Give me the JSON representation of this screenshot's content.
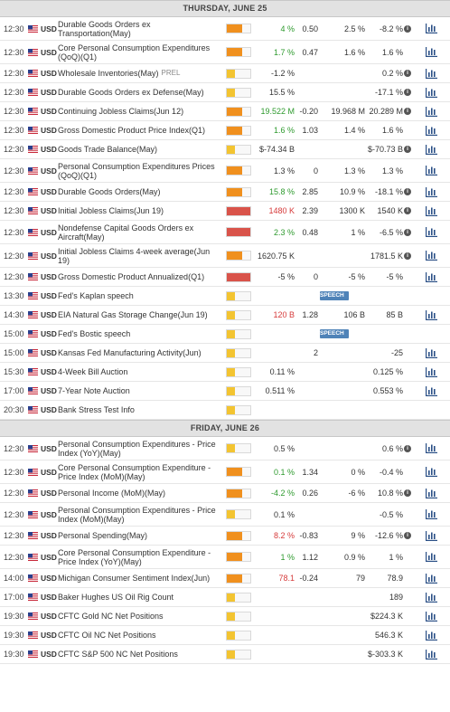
{
  "colors": {
    "orange": "#f0901e",
    "red": "#d9534a",
    "yellow": "#f3c431",
    "green": "#2e9a2e",
    "down": "#d63a3a",
    "speech": "#4f83b8"
  },
  "icons": {
    "flag": "us-flag-icon",
    "info": "info-icon",
    "chart": "bar-chart-icon"
  },
  "days": [
    {
      "header": "THURSDAY, JUNE 25",
      "events": [
        {
          "time": "12:30",
          "currency": "USD",
          "name": "Durable Goods Orders ex Transportation(May)",
          "tag": "",
          "vol": "orange",
          "actual": "4 %",
          "actual_color": "g",
          "deviation": "0.50",
          "consensus": "2.5 %",
          "previous": "-8.2 %",
          "info": true,
          "chart": true,
          "h": 26
        },
        {
          "time": "12:30",
          "currency": "USD",
          "name": "Core Personal Consumption Expenditures (QoQ)(Q1)",
          "tag": "",
          "vol": "orange",
          "actual": "1.7 %",
          "actual_color": "g",
          "deviation": "0.47",
          "consensus": "1.6 %",
          "previous": "1.6 %",
          "info": false,
          "chart": true,
          "h": 26
        },
        {
          "time": "12:30",
          "currency": "USD",
          "name": "Wholesale Inventories(May)",
          "tag": "PREL",
          "vol": "yellow",
          "actual": "-1.2 %",
          "actual_color": "k",
          "deviation": "",
          "consensus": "",
          "previous": "0.2 %",
          "info": true,
          "chart": true,
          "h": 21
        },
        {
          "time": "12:30",
          "currency": "USD",
          "name": "Durable Goods Orders ex Defense(May)",
          "tag": "",
          "vol": "yellow",
          "actual": "15.5 %",
          "actual_color": "k",
          "deviation": "",
          "consensus": "",
          "previous": "-17.1 %",
          "info": true,
          "chart": true,
          "h": 21
        },
        {
          "time": "12:30",
          "currency": "USD",
          "name": "Continuing Jobless Claims(Jun 12)",
          "tag": "",
          "vol": "orange",
          "actual": "19.522 M",
          "actual_color": "g",
          "deviation": "-0.20",
          "consensus": "19.968 M",
          "previous": "20.289 M",
          "info": true,
          "chart": true,
          "h": 21
        },
        {
          "time": "12:30",
          "currency": "USD",
          "name": "Gross Domestic Product Price Index(Q1)",
          "tag": "",
          "vol": "orange",
          "actual": "1.6 %",
          "actual_color": "g",
          "deviation": "1.03",
          "consensus": "1.4 %",
          "previous": "1.6 %",
          "info": false,
          "chart": true,
          "h": 21
        },
        {
          "time": "12:30",
          "currency": "USD",
          "name": "Goods Trade Balance(May)",
          "tag": "",
          "vol": "yellow",
          "actual": "$-74.34 B",
          "actual_color": "k",
          "deviation": "",
          "consensus": "",
          "previous": "$-70.73 B",
          "info": true,
          "chart": true,
          "h": 21
        },
        {
          "time": "12:30",
          "currency": "USD",
          "name": "Personal Consumption Expenditures Prices (QoQ)(Q1)",
          "tag": "",
          "vol": "orange",
          "actual": "1.3 %",
          "actual_color": "k",
          "deviation": "0",
          "consensus": "1.3 %",
          "previous": "1.3 %",
          "info": false,
          "chart": true,
          "h": 26
        },
        {
          "time": "12:30",
          "currency": "USD",
          "name": "Durable Goods Orders(May)",
          "tag": "",
          "vol": "orange",
          "actual": "15.8 %",
          "actual_color": "g",
          "deviation": "2.85",
          "consensus": "10.9 %",
          "previous": "-18.1 %",
          "info": true,
          "chart": true,
          "h": 21
        },
        {
          "time": "12:30",
          "currency": "USD",
          "name": "Initial Jobless Claims(Jun 19)",
          "tag": "",
          "vol": "red",
          "actual": "1480 K",
          "actual_color": "r",
          "deviation": "2.39",
          "consensus": "1300 K",
          "previous": "1540 K",
          "info": true,
          "chart": true,
          "h": 21
        },
        {
          "time": "12:30",
          "currency": "USD",
          "name": "Nondefense Capital Goods Orders ex Aircraft(May)",
          "tag": "",
          "vol": "red",
          "actual": "2.3 %",
          "actual_color": "g",
          "deviation": "0.48",
          "consensus": "1 %",
          "previous": "-6.5 %",
          "info": true,
          "chart": true,
          "h": 26
        },
        {
          "time": "12:30",
          "currency": "USD",
          "name": "Initial Jobless Claims 4-week average(Jun 19)",
          "tag": "",
          "vol": "orange",
          "actual": "1620.75 K",
          "actual_color": "k",
          "deviation": "",
          "consensus": "",
          "previous": "1781.5 K",
          "info": true,
          "chart": true,
          "h": 26
        },
        {
          "time": "12:30",
          "currency": "USD",
          "name": "Gross Domestic Product Annualized(Q1)",
          "tag": "",
          "vol": "red",
          "actual": "-5 %",
          "actual_color": "k",
          "deviation": "0",
          "consensus": "-5 %",
          "previous": "-5 %",
          "info": false,
          "chart": true,
          "h": 21
        },
        {
          "time": "13:30",
          "currency": "USD",
          "name": "Fed's Kaplan speech",
          "tag": "",
          "vol": "yellow",
          "actual": "",
          "actual_color": "k",
          "deviation": "",
          "consensus": "",
          "previous": "",
          "info": false,
          "chart": false,
          "speech": "SPEECH",
          "h": 21
        },
        {
          "time": "14:30",
          "currency": "USD",
          "name": "EIA Natural Gas Storage Change(Jun 19)",
          "tag": "",
          "vol": "yellow",
          "actual": "120 B",
          "actual_color": "r",
          "deviation": "1.28",
          "consensus": "106 B",
          "previous": "85 B",
          "info": false,
          "chart": true,
          "h": 21
        },
        {
          "time": "15:00",
          "currency": "USD",
          "name": "Fed's Bostic speech",
          "tag": "",
          "vol": "yellow",
          "actual": "",
          "actual_color": "k",
          "deviation": "",
          "consensus": "",
          "previous": "",
          "info": false,
          "chart": false,
          "speech": "SPEECH",
          "h": 21
        },
        {
          "time": "15:00",
          "currency": "USD",
          "name": "Kansas Fed Manufacturing Activity(Jun)",
          "tag": "",
          "vol": "yellow",
          "actual": "",
          "actual_color": "k",
          "deviation": "2",
          "consensus": "",
          "previous": "-25",
          "info": false,
          "chart": true,
          "h": 21
        },
        {
          "time": "15:30",
          "currency": "USD",
          "name": "4-Week Bill Auction",
          "tag": "",
          "vol": "yellow",
          "actual": "0.11 %",
          "actual_color": "k",
          "deviation": "",
          "consensus": "",
          "previous": "0.125 %",
          "info": false,
          "chart": true,
          "h": 21
        },
        {
          "time": "17:00",
          "currency": "USD",
          "name": "7-Year Note Auction",
          "tag": "",
          "vol": "yellow",
          "actual": "0.511 %",
          "actual_color": "k",
          "deviation": "",
          "consensus": "",
          "previous": "0.553 %",
          "info": false,
          "chart": true,
          "h": 21
        },
        {
          "time": "20:30",
          "currency": "USD",
          "name": "Bank Stress Test Info",
          "tag": "",
          "vol": "yellow",
          "actual": "",
          "actual_color": "k",
          "deviation": "",
          "consensus": "",
          "previous": "",
          "info": false,
          "chart": false,
          "h": 21
        }
      ]
    },
    {
      "header": "FRIDAY, JUNE 26",
      "events": [
        {
          "time": "12:30",
          "currency": "USD",
          "name": "Personal Consumption Expenditures - Price Index (YoY)(May)",
          "tag": "",
          "vol": "yellow",
          "actual": "0.5 %",
          "actual_color": "k",
          "deviation": "",
          "consensus": "",
          "previous": "0.6 %",
          "info": true,
          "chart": true,
          "h": 26
        },
        {
          "time": "12:30",
          "currency": "USD",
          "name": "Core Personal Consumption Expenditure - Price Index (MoM)(May)",
          "tag": "",
          "vol": "orange",
          "actual": "0.1 %",
          "actual_color": "g",
          "deviation": "1.34",
          "consensus": "0 %",
          "previous": "-0.4 %",
          "info": false,
          "chart": true,
          "h": 26
        },
        {
          "time": "12:30",
          "currency": "USD",
          "name": "Personal Income (MoM)(May)",
          "tag": "",
          "vol": "orange",
          "actual": "-4.2 %",
          "actual_color": "g",
          "deviation": "0.26",
          "consensus": "-6 %",
          "previous": "10.8 %",
          "info": true,
          "chart": true,
          "h": 21
        },
        {
          "time": "12:30",
          "currency": "USD",
          "name": "Personal Consumption Expenditures - Price Index (MoM)(May)",
          "tag": "",
          "vol": "yellow",
          "actual": "0.1 %",
          "actual_color": "k",
          "deviation": "",
          "consensus": "",
          "previous": "-0.5 %",
          "info": false,
          "chart": true,
          "h": 26
        },
        {
          "time": "12:30",
          "currency": "USD",
          "name": "Personal Spending(May)",
          "tag": "",
          "vol": "orange",
          "actual": "8.2 %",
          "actual_color": "r",
          "deviation": "-0.83",
          "consensus": "9 %",
          "previous": "-12.6 %",
          "info": true,
          "chart": true,
          "h": 21
        },
        {
          "time": "12:30",
          "currency": "USD",
          "name": "Core Personal Consumption Expenditure - Price Index (YoY)(May)",
          "tag": "",
          "vol": "orange",
          "actual": "1 %",
          "actual_color": "g",
          "deviation": "1.12",
          "consensus": "0.9 %",
          "previous": "1 %",
          "info": false,
          "chart": true,
          "h": 26
        },
        {
          "time": "14:00",
          "currency": "USD",
          "name": "Michigan Consumer Sentiment Index(Jun)",
          "tag": "",
          "vol": "orange",
          "actual": "78.1",
          "actual_color": "r",
          "deviation": "-0.24",
          "consensus": "79",
          "previous": "78.9",
          "info": false,
          "chart": true,
          "h": 21
        },
        {
          "time": "17:00",
          "currency": "USD",
          "name": "Baker Hughes US Oil Rig Count",
          "tag": "",
          "vol": "yellow",
          "actual": "",
          "actual_color": "k",
          "deviation": "",
          "consensus": "",
          "previous": "189",
          "info": false,
          "chart": true,
          "h": 21
        },
        {
          "time": "19:30",
          "currency": "USD",
          "name": "CFTC Gold NC Net Positions",
          "tag": "",
          "vol": "yellow",
          "actual": "",
          "actual_color": "k",
          "deviation": "",
          "consensus": "",
          "previous": "$224.3 K",
          "info": false,
          "chart": true,
          "h": 21
        },
        {
          "time": "19:30",
          "currency": "USD",
          "name": "CFTC Oil NC Net Positions",
          "tag": "",
          "vol": "yellow",
          "actual": "",
          "actual_color": "k",
          "deviation": "",
          "consensus": "",
          "previous": "546.3 K",
          "info": false,
          "chart": true,
          "h": 21
        },
        {
          "time": "19:30",
          "currency": "USD",
          "name": "CFTC S&P 500 NC Net Positions",
          "tag": "",
          "vol": "yellow",
          "actual": "",
          "actual_color": "k",
          "deviation": "",
          "consensus": "",
          "previous": "$-303.3 K",
          "info": false,
          "chart": true,
          "h": 21
        }
      ]
    }
  ]
}
